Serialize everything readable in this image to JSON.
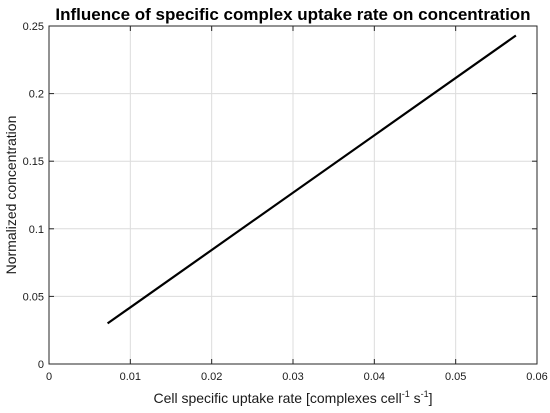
{
  "chart_data": {
    "type": "line",
    "title": "Influence of specific complex uptake rate on concentration",
    "xlabel": {
      "text": "Cell specific uptake rate [complexes cell",
      "sup1": "-1",
      "mid": " s",
      "sup2": "-1",
      "end": "]"
    },
    "ylabel": "Normalized concentration",
    "xlim": [
      0,
      0.06
    ],
    "ylim": [
      0,
      0.25
    ],
    "xticks": [
      0,
      0.01,
      0.02,
      0.03,
      0.04,
      0.05,
      0.06
    ],
    "xtick_labels": [
      "0",
      "0.01",
      "0.02",
      "0.03",
      "0.04",
      "0.05",
      "0.06"
    ],
    "yticks": [
      0,
      0.05,
      0.1,
      0.15,
      0.2,
      0.25
    ],
    "ytick_labels": [
      "0",
      "0.05",
      "0.1",
      "0.15",
      "0.2",
      "0.25"
    ],
    "grid": true,
    "series": [
      {
        "x": [
          0.0072,
          0.0574
        ],
        "y": [
          0.03,
          0.243
        ],
        "color": "#000000"
      }
    ]
  }
}
